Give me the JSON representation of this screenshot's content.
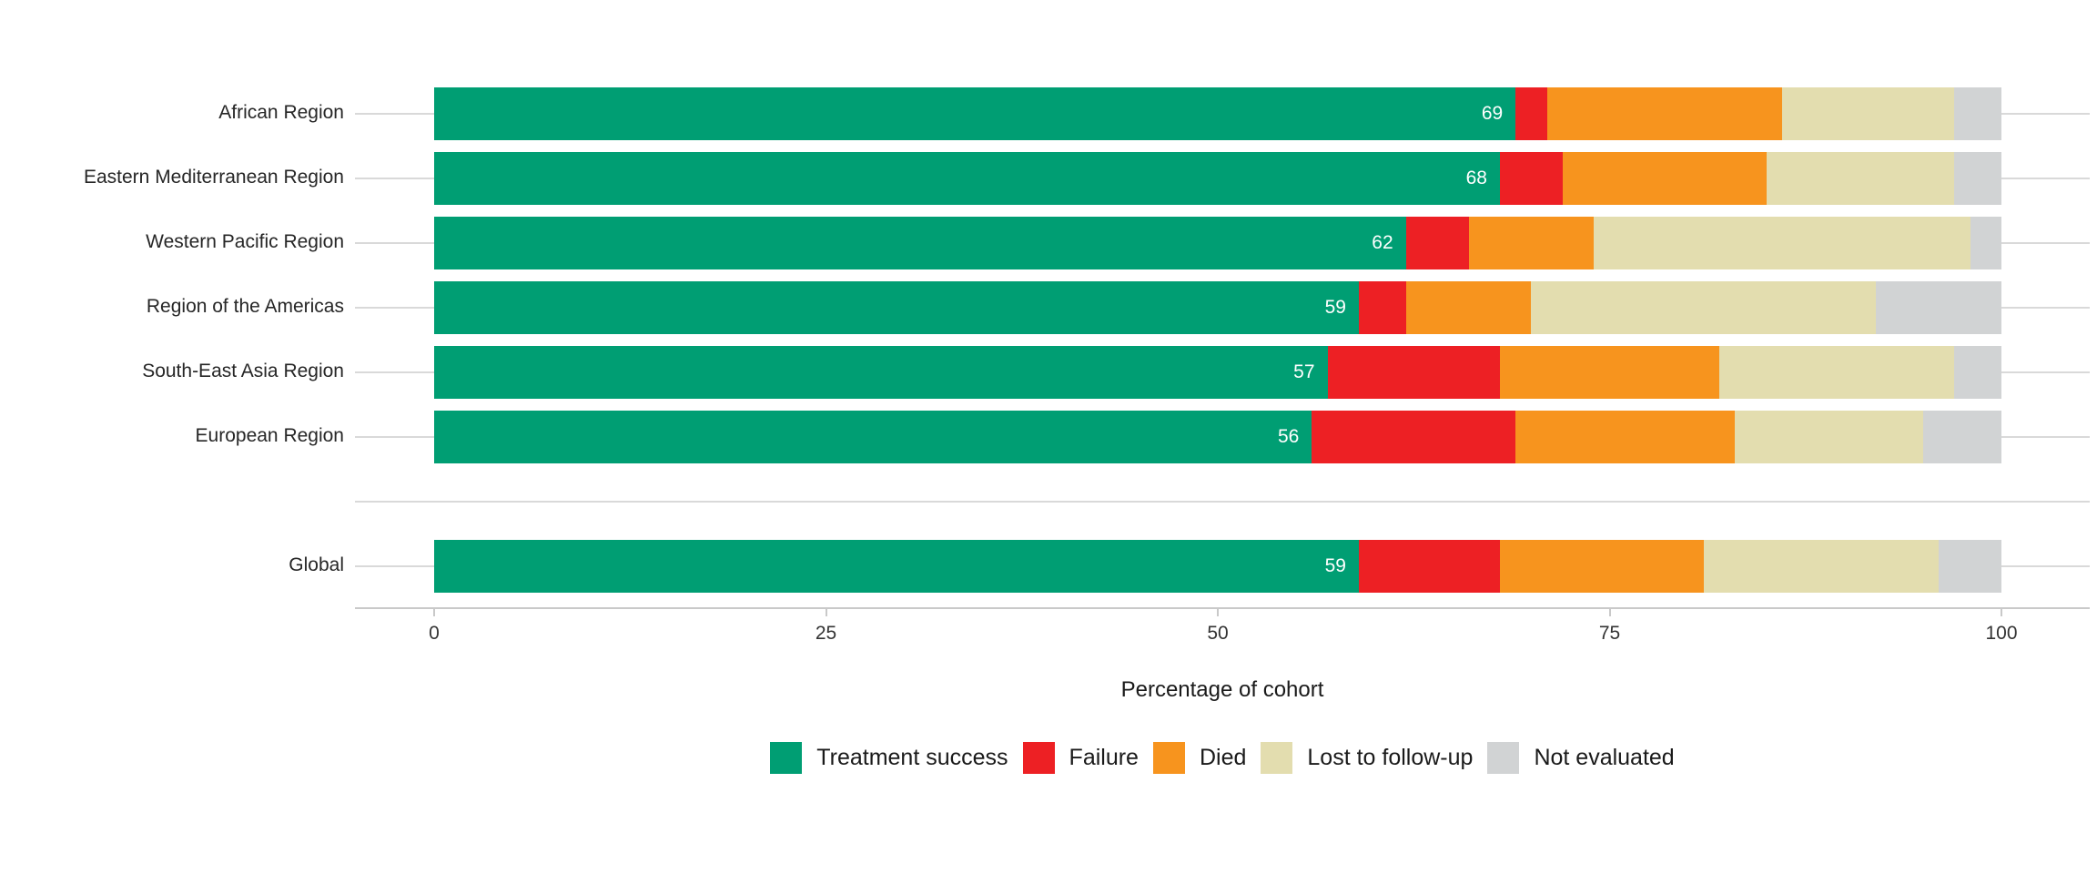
{
  "chart_data": {
    "type": "bar",
    "orientation": "horizontal",
    "stacked": true,
    "title": "",
    "xlabel": "Percentage of cohort",
    "ylabel": "",
    "xlim": [
      0,
      100
    ],
    "x_ticks": [
      0,
      25,
      50,
      75,
      100
    ],
    "x_tick_labels": [
      "0",
      "25",
      "50",
      "75",
      "100"
    ],
    "grid": "horizontal gridlines only, light gray, drawn behind bars",
    "legend_position": "bottom",
    "categories": [
      "African Region",
      "Eastern Mediterranean Region",
      "Western Pacific Region",
      "Region of the Americas",
      "South-East Asia Region",
      "European Region",
      "Global"
    ],
    "separator_after_category_index": 5,
    "series": [
      {
        "name": "Treatment success",
        "color": "#009E73",
        "values": [
          69,
          68,
          62,
          59,
          57,
          56,
          59
        ]
      },
      {
        "name": "Failure",
        "color": "#ED2024",
        "values": [
          2,
          4,
          4,
          3,
          11,
          13,
          9
        ]
      },
      {
        "name": "Died",
        "color": "#F7941E",
        "values": [
          15,
          13,
          8,
          8,
          14,
          14,
          13
        ]
      },
      {
        "name": "Lost to follow-up",
        "color": "#E3DDAF",
        "values": [
          11,
          12,
          24,
          22,
          15,
          12,
          15
        ]
      },
      {
        "name": "Not evaluated",
        "color": "#D1D3D4",
        "values": [
          3,
          3,
          2,
          8,
          3,
          5,
          4
        ]
      }
    ],
    "bar_value_labels": [
      "69",
      "68",
      "62",
      "59",
      "57",
      "56",
      "59"
    ],
    "bar_value_label_series": "Treatment success",
    "bar_value_label_color": "#ffffff",
    "colors": {
      "treatment_success": "#009E73",
      "failure": "#ED2024",
      "died": "#F7941E",
      "lost_to_follow_up": "#E3DDAF",
      "not_evaluated": "#D1D3D4",
      "gridline": "#D9D9D9",
      "axis_line": "#C9C9C9",
      "text": "#262626"
    }
  }
}
